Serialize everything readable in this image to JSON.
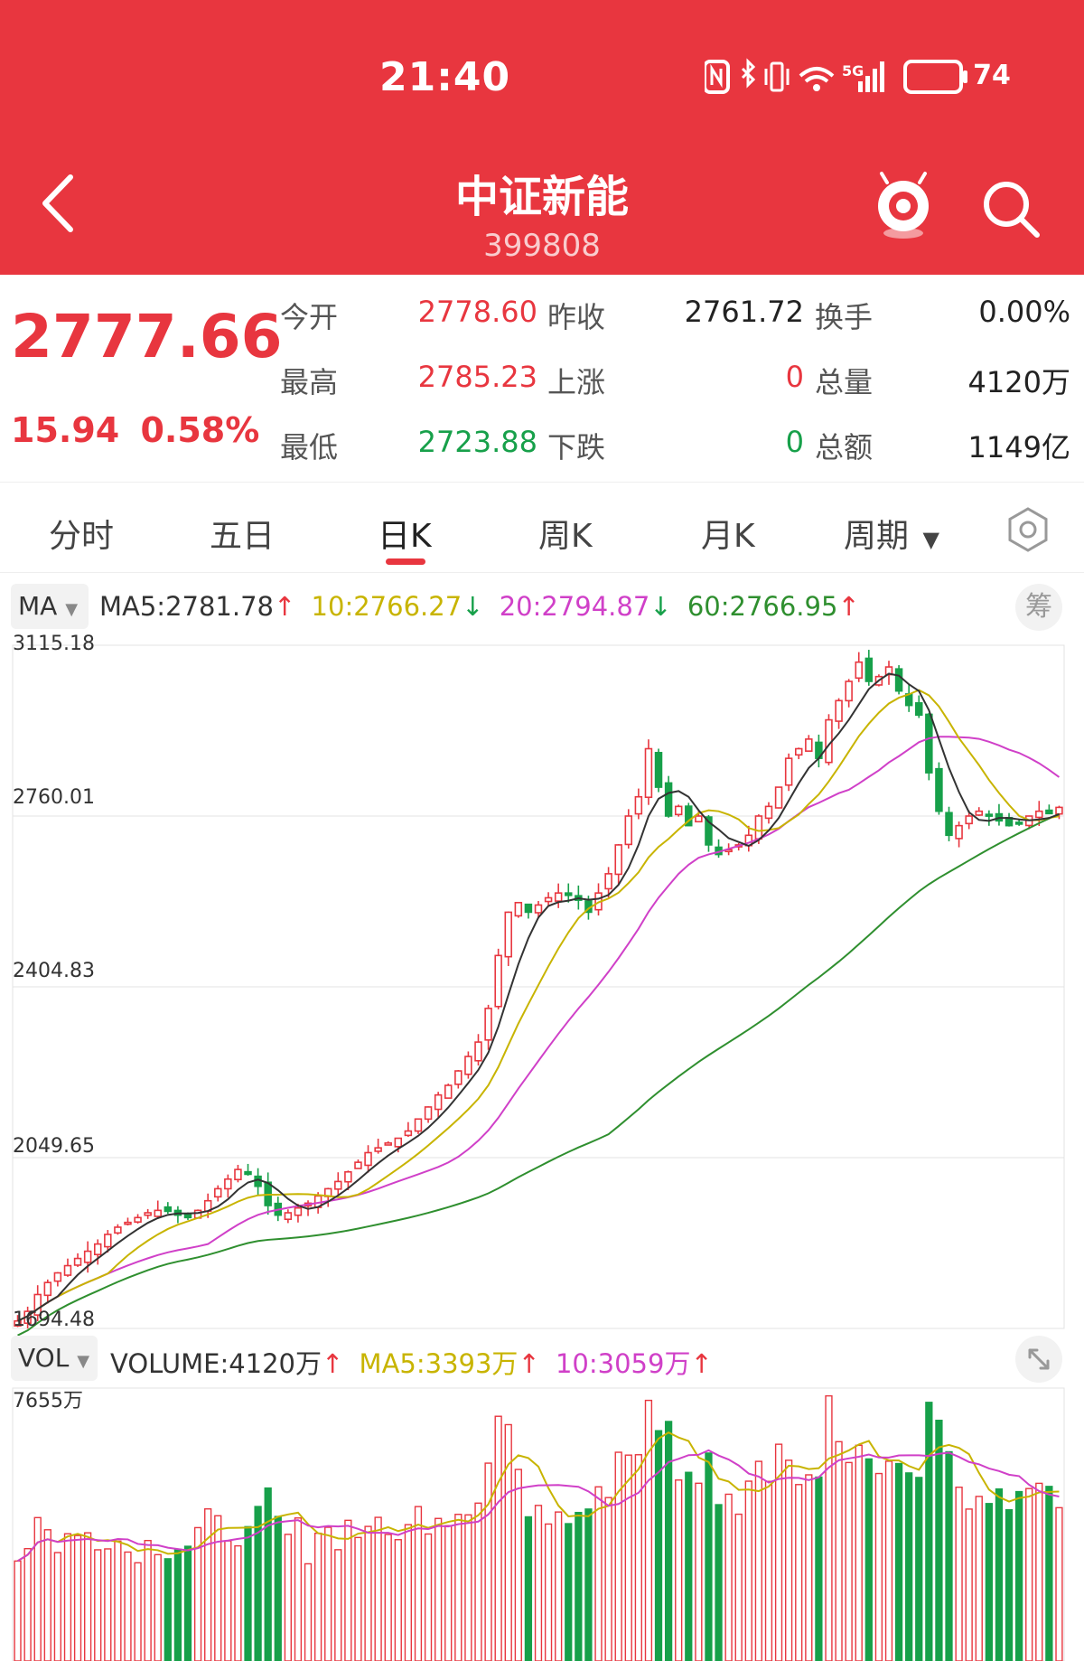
{
  "status_bar": {
    "time": "21:40",
    "network": "5G",
    "battery": "74"
  },
  "header": {
    "title": "中证新能",
    "code": "399808"
  },
  "quote": {
    "price": "2777.66",
    "change": "15.94",
    "change_pct": "0.58%",
    "rows": [
      {
        "l1": "今开",
        "v1": "2778.60",
        "l2": "昨收",
        "v2": "2761.72",
        "l3": "换手",
        "v3": "0.00%"
      },
      {
        "l1": "最高",
        "v1": "2785.23",
        "l2": "上涨",
        "v2": "0",
        "l3": "总量",
        "v3": "4120万"
      },
      {
        "l1": "最低",
        "v1": "2723.88",
        "l2": "下跌",
        "v2": "0",
        "l3": "总额",
        "v3": "1149亿"
      }
    ]
  },
  "tabs": [
    "分时",
    "五日",
    "日K",
    "周K",
    "月K",
    "周期"
  ],
  "active_tab": "日K",
  "colors": {
    "up": "#e8363f",
    "down": "#17a04a",
    "ma5": "#333333",
    "ma10": "#c8b400",
    "ma20": "#d040c8",
    "ma60": "#2f8f2f",
    "header_bg": "#e8363f"
  },
  "ma_legend": {
    "pill": "MA",
    "ma5": "MA5:2781.78",
    "ma10": "10:2766.27",
    "ma20": "20:2794.87",
    "ma60": "60:2766.95",
    "ma5_dir": "↑",
    "ma10_dir": "↓",
    "ma20_dir": "↓",
    "ma60_dir": "↑",
    "chip": "筹"
  },
  "vol_legend": {
    "pill": "VOL",
    "volume": "VOLUME:4120万",
    "ma5": "MA5:3393万",
    "ma10": "10:3059万",
    "volume_dir": "↑",
    "ma5_dir": "↑",
    "ma10_dir": "↑",
    "expand_icon": "expand-icon"
  },
  "chart_data": {
    "type": "candlestick",
    "price_axis_labels": [
      "3115.18",
      "2760.01",
      "2404.83",
      "2049.65",
      "1694.48"
    ],
    "price_axis_values": [
      3115.18,
      2760.01,
      2404.83,
      2049.65,
      1694.48
    ],
    "volume_axis_label": "7655万",
    "volume_axis_max": 7655,
    "ylim_price": [
      1694.48,
      3115.18
    ],
    "ylim_volume": [
      0,
      7655
    ],
    "candles_close_approx": [
      1710,
      1730,
      1765,
      1790,
      1810,
      1825,
      1840,
      1855,
      1870,
      1890,
      1905,
      1915,
      1925,
      1935,
      1940,
      1938,
      1930,
      1925,
      1940,
      1960,
      1985,
      2005,
      2025,
      2015,
      1990,
      1950,
      1930,
      1935,
      1945,
      1955,
      1970,
      1985,
      2000,
      2020,
      2040,
      2060,
      2070,
      2080,
      2090,
      2105,
      2130,
      2155,
      2180,
      2200,
      2230,
      2260,
      2290,
      2360,
      2470,
      2560,
      2580,
      2560,
      2575,
      2590,
      2600,
      2595,
      2585,
      2560,
      2600,
      2640,
      2700,
      2760,
      2800,
      2900,
      2820,
      2760,
      2780,
      2740,
      2760,
      2700,
      2680,
      2690,
      2700,
      2720,
      2760,
      2780,
      2820,
      2880,
      2900,
      2920,
      2880,
      2960,
      3000,
      3040,
      3080,
      3040,
      3050,
      3070,
      3020,
      2990,
      2970,
      2850,
      2770,
      2720,
      2740,
      2760,
      2770,
      2760,
      2750,
      2740,
      2745,
      2760,
      2770,
      2765,
      2778
    ],
    "ma_series_note": "MA5, MA10, MA20, MA60 overlays computed from closes"
  }
}
